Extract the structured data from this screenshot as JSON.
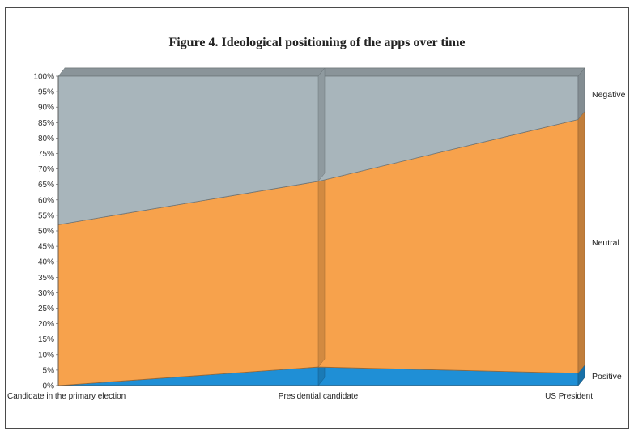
{
  "chart_data": {
    "type": "area",
    "title": "Figure 4. Ideological positioning of the apps over time",
    "xlabel": "",
    "ylabel": "",
    "stacked": "percent",
    "ylim": [
      0,
      100
    ],
    "yticks": [
      "0%",
      "5%",
      "10%",
      "15%",
      "20%",
      "25%",
      "30%",
      "35%",
      "40%",
      "45%",
      "50%",
      "55%",
      "60%",
      "65%",
      "70%",
      "75%",
      "80%",
      "85%",
      "90%",
      "95%",
      "100%"
    ],
    "categories": [
      "Candidate in the primary election",
      "Presidential candidate",
      "US President"
    ],
    "series": [
      {
        "name": "Positive",
        "values": [
          0,
          6,
          4
        ],
        "color": "#1f8fd6"
      },
      {
        "name": "Neutral",
        "values": [
          52,
          60,
          82
        ],
        "color": "#f7a24c"
      },
      {
        "name": "Negative",
        "values": [
          48,
          34,
          14
        ],
        "color": "#a8b5bb"
      }
    ],
    "legend_placement": "right",
    "grid": false,
    "style": "3d"
  }
}
